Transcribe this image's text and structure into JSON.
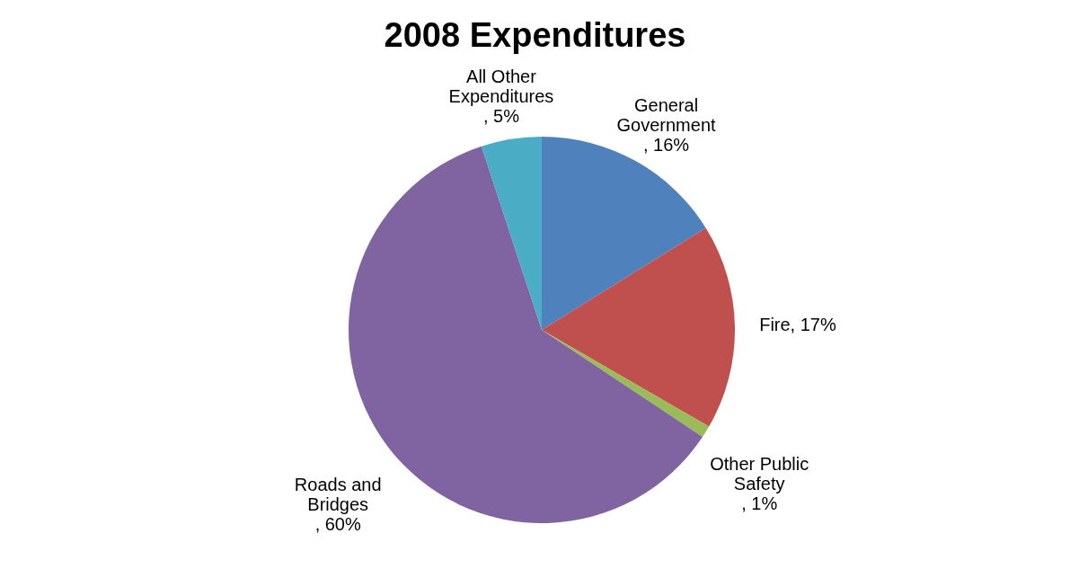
{
  "chart_data": {
    "type": "pie",
    "title": "2008 Expenditures",
    "categories": [
      "General Government",
      "Fire",
      "Other Public Safety",
      "Roads and Bridges",
      "All Other Expenditures"
    ],
    "values": [
      16,
      17,
      1,
      60,
      5
    ],
    "value_labels": [
      ", 16%",
      ", 17%",
      ", 1%",
      ", 60%",
      ", 5%"
    ],
    "colors": [
      "#4f81bd",
      "#c0504d",
      "#9bbb59",
      "#8064a2",
      "#4bacc6"
    ],
    "legend": false
  }
}
